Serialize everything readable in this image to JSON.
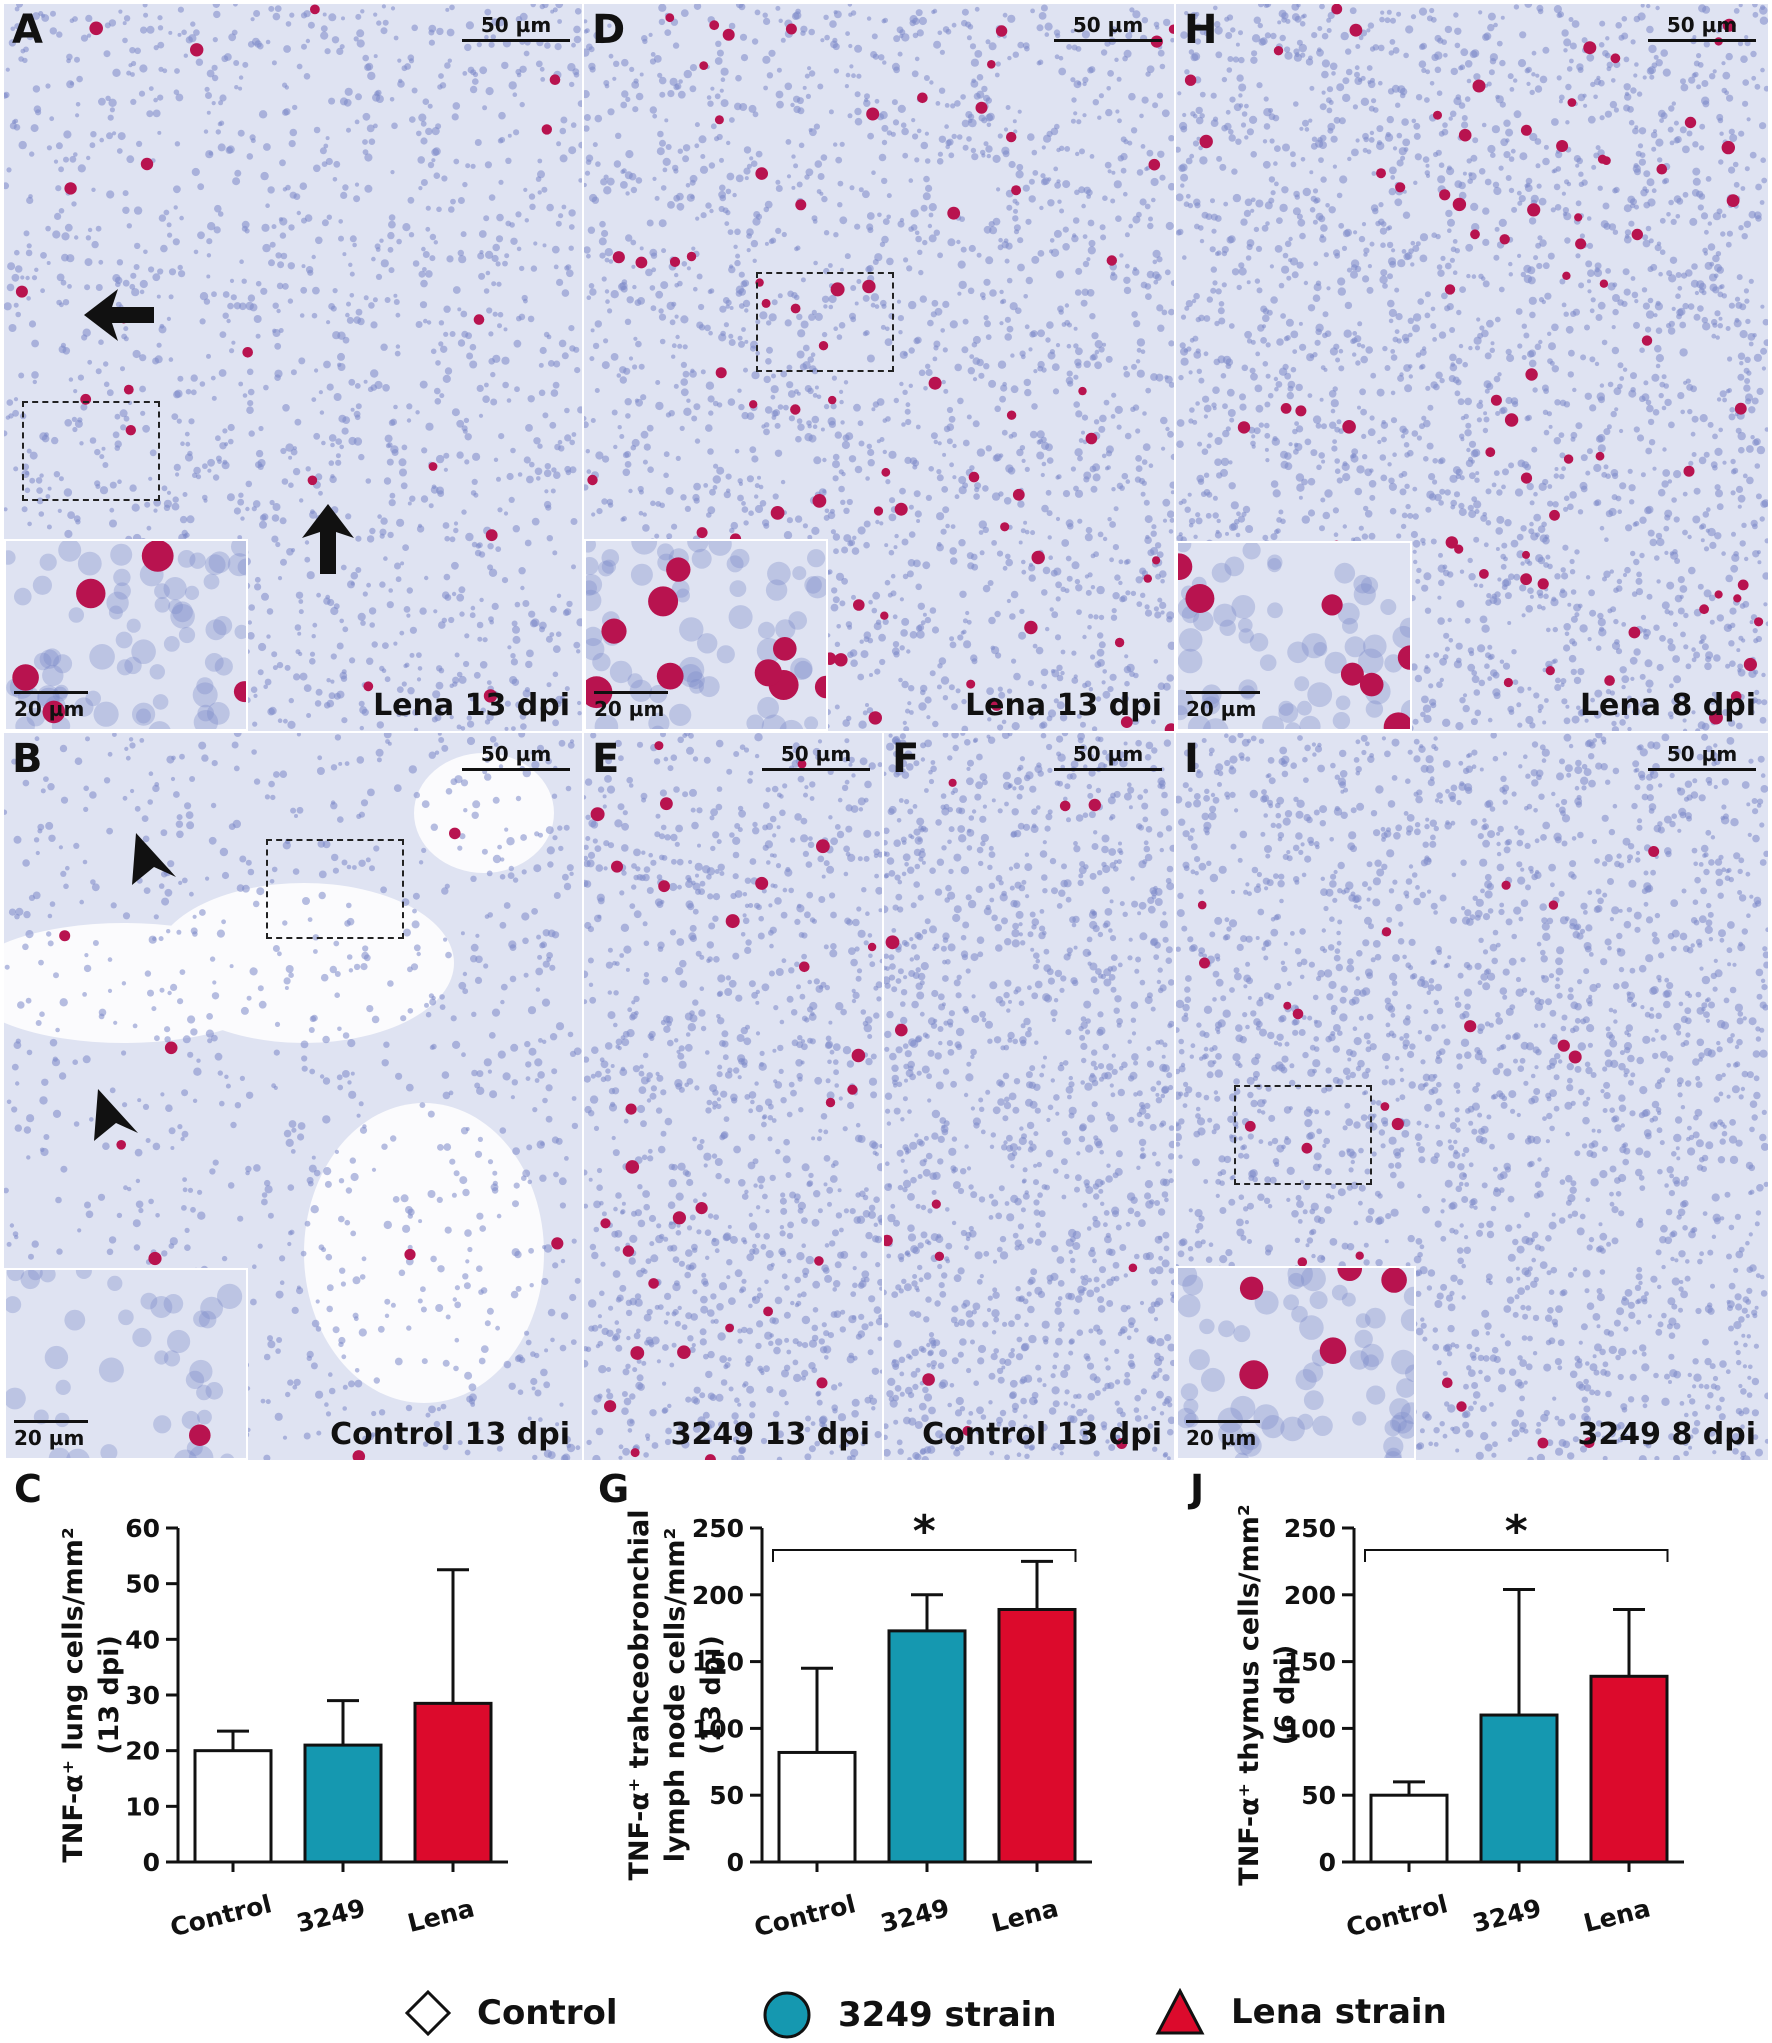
{
  "colors": {
    "control": "#ffffff",
    "strain_3249": "#1598b0",
    "lena": "#dc0a2c",
    "tissue_bg": "#dfe3f2",
    "nucleus": "#7c89c9",
    "stain": "#b8134f"
  },
  "panels": {
    "A": {
      "letter": "A",
      "caption": "Lena  13 dpi",
      "scale": "50 µm",
      "inset_scale": "20 µm"
    },
    "B": {
      "letter": "B",
      "caption": "Control 13 dpi",
      "scale": "50 µm",
      "inset_scale": "20 µm"
    },
    "D": {
      "letter": "D",
      "caption": "Lena 13 dpi",
      "scale": "50 µm",
      "inset_scale": "20 µm"
    },
    "E": {
      "letter": "E",
      "caption": "3249 13 dpi",
      "scale": "50 µm"
    },
    "F": {
      "letter": "F",
      "caption": "Control 13 dpi",
      "scale": "50 µm"
    },
    "H": {
      "letter": "H",
      "caption": "Lena 8 dpi",
      "scale": "50 µm",
      "inset_scale": "20 µm"
    },
    "I": {
      "letter": "I",
      "caption": "3249  8 dpi",
      "scale": "50 µm",
      "inset_scale": "20 µm"
    }
  },
  "chart_data": [
    {
      "id": "C",
      "type": "bar",
      "letter": "C",
      "ylabel_lines": [
        "TNF-α⁺ lung cells/mm²",
        "(13 dpi)"
      ],
      "categories": [
        "Control",
        "3249",
        "Lena"
      ],
      "values": [
        20,
        21,
        28.5
      ],
      "errors": [
        3.5,
        8,
        24
      ],
      "ylim": [
        0,
        60
      ],
      "yticks": [
        "0",
        "10",
        "20",
        "30",
        "40",
        "50",
        "60"
      ],
      "significance": ""
    },
    {
      "id": "G",
      "type": "bar",
      "letter": "G",
      "ylabel_lines": [
        "TNF-α⁺  trahceobronchial",
        "lymph node cells/mm²",
        "(13 dpi)"
      ],
      "categories": [
        "Control",
        "3249",
        "Lena"
      ],
      "values": [
        82,
        173,
        189
      ],
      "errors": [
        63,
        27,
        36
      ],
      "ylim": [
        0,
        250
      ],
      "yticks": [
        "0",
        "50",
        "100",
        "150",
        "200",
        "250"
      ],
      "significance": "*"
    },
    {
      "id": "J",
      "type": "bar",
      "letter": "J",
      "ylabel_lines": [
        "TNF-α⁺ thymus cells/mm²",
        "(6 dpi)"
      ],
      "categories": [
        "Control",
        "3249",
        "Lena"
      ],
      "values": [
        50,
        110,
        139
      ],
      "errors": [
        10,
        94,
        50
      ],
      "ylim": [
        0,
        250
      ],
      "yticks": [
        "0",
        "50",
        "100",
        "150",
        "200",
        "250"
      ],
      "significance": "*"
    }
  ],
  "legend": [
    {
      "label": "Control",
      "shape": "diamond",
      "color": "#ffffff"
    },
    {
      "label": "3249 strain",
      "shape": "circle",
      "color": "#1598b0"
    },
    {
      "label": "Lena strain",
      "shape": "triangle",
      "color": "#dc0a2c"
    }
  ]
}
